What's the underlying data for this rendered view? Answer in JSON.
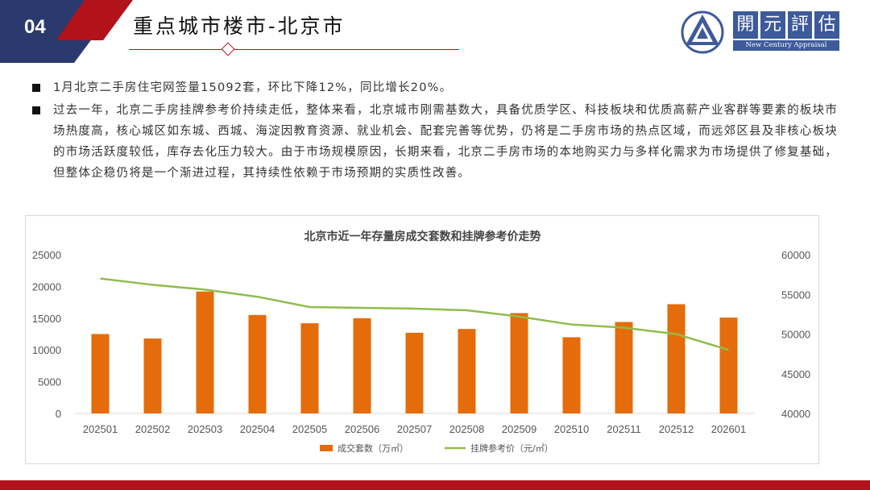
{
  "header": {
    "section_number": "04",
    "title": "重点城市楼市-北京市",
    "logo": {
      "chars": [
        "開",
        "元",
        "評",
        "估"
      ],
      "english": "New Century Appraisal"
    }
  },
  "bullets": [
    "1月北京二手房住宅网签量15092套，环比下降12%，同比增长20%。",
    "过去一年，北京二手房挂牌参考价持续走低，整体来看，北京城市刚需基数大，具备优质学区、科技板块和优质高薪产业客群等要素的板块市场热度高，核心城区如东城、西城、海淀因教育资源、就业机会、配套完善等优势，仍将是二手房市场的热点区域，而远郊区县及非核心板块的市场活跃度较低，库存去化压力较大。由于市场规模原因，长期来看，北京二手房市场的本地购买力与多样化需求为市场提供了修复基础，但整体企稳仍将是一个渐进过程，其持续性依赖于市场预期的实质性改善。"
  ],
  "colors": {
    "bar": "#e46c0a",
    "line": "#8fbc4e",
    "accent": "#b2121a",
    "navy": "#2b3a6e"
  },
  "chart_data": {
    "type": "bar",
    "title": "北京市近一年存量房成交套数和挂牌参考价走势",
    "categories": [
      "202501",
      "202502",
      "202503",
      "202504",
      "202505",
      "202506",
      "202507",
      "202508",
      "202509",
      "202510",
      "202511",
      "202512",
      "202601"
    ],
    "series": [
      {
        "name": "成交套数（万㎡）",
        "type": "bar",
        "axis": "left",
        "values": [
          12500,
          11800,
          19200,
          15500,
          14200,
          15000,
          12700,
          13300,
          15800,
          12000,
          14400,
          17200,
          15092
        ]
      },
      {
        "name": "挂牌参考价（元/㎡）",
        "type": "line",
        "axis": "right",
        "values": [
          57000,
          56200,
          55600,
          54700,
          53400,
          53300,
          53200,
          53000,
          52200,
          51200,
          50800,
          50000,
          48000
        ]
      }
    ],
    "y_left": {
      "min": 0,
      "max": 25000,
      "ticks": [
        0,
        5000,
        10000,
        15000,
        20000,
        25000
      ]
    },
    "y_right": {
      "min": 40000,
      "max": 60000,
      "ticks": [
        40000,
        45000,
        50000,
        55000,
        60000
      ]
    },
    "grid": false,
    "legend": "bottom"
  }
}
